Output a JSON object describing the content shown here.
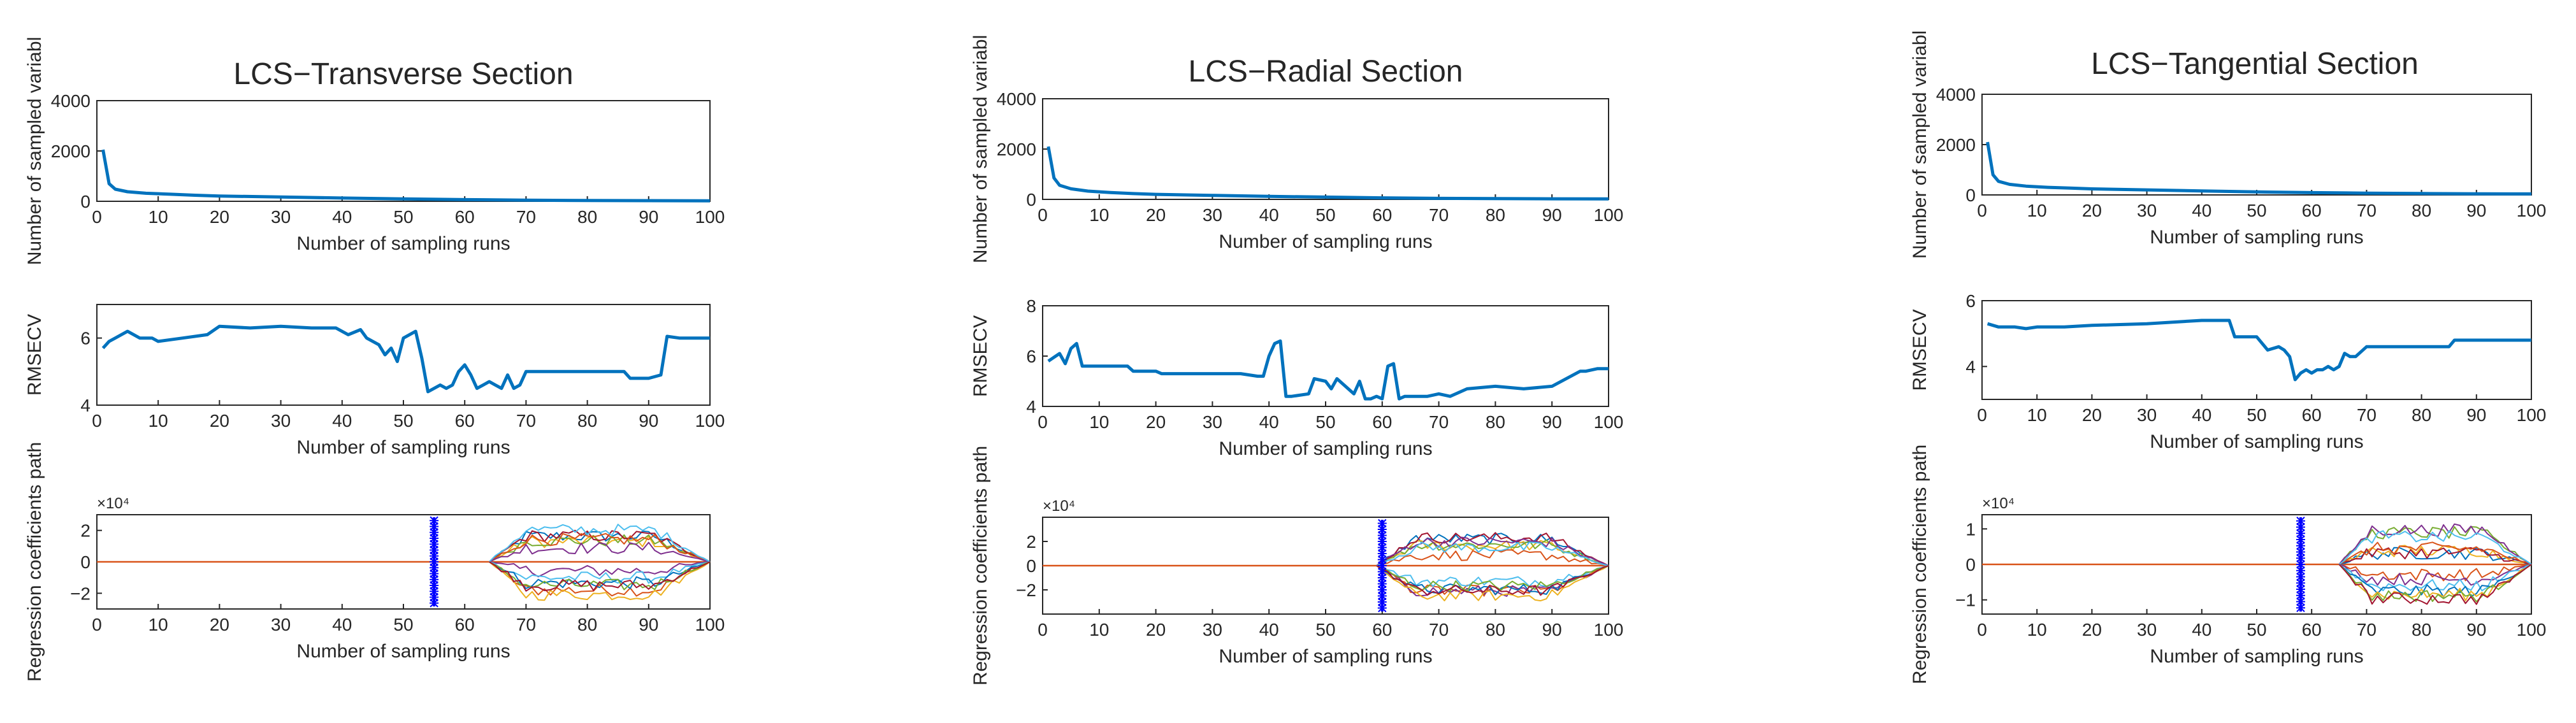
{
  "chart_data": [
    {
      "title": "LCS−Transverse Section",
      "subplots": [
        {
          "type": "line",
          "ylabel": "Number of sampled variabl",
          "xlabel": "Number of sampling runs",
          "xlim": [
            0,
            100
          ],
          "xticks": [
            0,
            10,
            20,
            30,
            40,
            50,
            60,
            70,
            80,
            90,
            100
          ],
          "ylim": [
            0,
            4000
          ],
          "yticks": [
            0,
            2000,
            4000
          ],
          "series": [
            {
              "name": "sampled variables",
              "color": "#0072BD",
              "x": [
                1,
                2,
                3,
                5,
                8,
                12,
                16,
                20,
                30,
                40,
                50,
                60,
                70,
                80,
                90,
                100
              ],
              "y": [
                2050,
                700,
                480,
                380,
                320,
                280,
                240,
                210,
                170,
                130,
                95,
                65,
                45,
                30,
                25,
                20
              ]
            }
          ]
        },
        {
          "type": "line",
          "ylabel": "RMSECV",
          "xlabel": "Number of sampling runs",
          "xlim": [
            0,
            100
          ],
          "xticks": [
            0,
            10,
            20,
            30,
            40,
            50,
            60,
            70,
            80,
            90,
            100
          ],
          "ylim": [
            4,
            7
          ],
          "yticks": [
            4,
            6
          ],
          "series": [
            {
              "name": "RMSECV",
              "color": "#0072BD",
              "x": [
                1,
                2,
                3,
                5,
                7,
                9,
                10,
                14,
                18,
                20,
                25,
                30,
                35,
                39,
                41,
                43,
                44,
                46,
                47,
                48,
                49,
                50,
                52,
                53,
                54,
                55,
                56,
                57,
                58,
                59,
                60,
                61,
                62,
                63,
                64,
                65,
                66,
                67,
                68,
                69,
                70,
                75,
                80,
                86,
                87,
                90,
                92,
                93,
                95,
                100
              ],
              "y": [
                5.7,
                5.9,
                6.0,
                6.2,
                6.0,
                6.0,
                5.9,
                6.0,
                6.1,
                6.35,
                6.3,
                6.35,
                6.3,
                6.3,
                6.1,
                6.25,
                6.0,
                5.8,
                5.5,
                5.7,
                5.3,
                6.0,
                6.2,
                5.4,
                4.4,
                4.5,
                4.6,
                4.5,
                4.6,
                5.0,
                5.2,
                4.9,
                4.5,
                4.6,
                4.7,
                4.6,
                4.5,
                4.9,
                4.5,
                4.6,
                5.0,
                5.0,
                5.0,
                5.0,
                4.8,
                4.8,
                4.9,
                6.05,
                6.0,
                6.0
              ]
            }
          ]
        },
        {
          "type": "line",
          "ylabel": "Regression coefficients path",
          "xlabel": "Number of sampling runs",
          "exponent": "×10⁴",
          "xlim": [
            0,
            100
          ],
          "xticks": [
            0,
            10,
            20,
            30,
            40,
            50,
            60,
            70,
            80,
            90,
            100
          ],
          "ylim": [
            -3,
            3
          ],
          "yticks": [
            -2,
            0,
            2
          ],
          "marker_x": 55,
          "paths_start": 64,
          "paths_end": 100,
          "path_amplitude": 2.2
        }
      ]
    },
    {
      "title": "LCS−Radial Section",
      "subplots": [
        {
          "type": "line",
          "ylabel": "Number of sampled variabl",
          "xlabel": "Number of sampling runs",
          "xlim": [
            0,
            100
          ],
          "xticks": [
            0,
            10,
            20,
            30,
            40,
            50,
            60,
            70,
            80,
            90,
            100
          ],
          "ylim": [
            0,
            4000
          ],
          "yticks": [
            0,
            2000,
            4000
          ],
          "series": [
            {
              "name": "sampled variables",
              "color": "#0072BD",
              "x": [
                1,
                2,
                3,
                5,
                8,
                12,
                16,
                20,
                30,
                40,
                50,
                60,
                70,
                80,
                90,
                100
              ],
              "y": [
                2100,
                850,
                560,
                420,
                330,
                270,
                230,
                200,
                160,
                120,
                90,
                60,
                40,
                30,
                22,
                18
              ]
            }
          ]
        },
        {
          "type": "line",
          "ylabel": "RMSECV",
          "xlabel": "Number of sampling runs",
          "xlim": [
            0,
            100
          ],
          "xticks": [
            0,
            10,
            20,
            30,
            40,
            50,
            60,
            70,
            80,
            90,
            100
          ],
          "ylim": [
            4,
            8
          ],
          "yticks": [
            4,
            6,
            8
          ],
          "series": [
            {
              "name": "RMSECV",
              "color": "#0072BD",
              "x": [
                1,
                3,
                4,
                5,
                6,
                7,
                8,
                12,
                15,
                16,
                20,
                21,
                30,
                35,
                38,
                39,
                40,
                41,
                42,
                43,
                44,
                47,
                48,
                50,
                51,
                52,
                55,
                56,
                57,
                58,
                59,
                60,
                61,
                62,
                63,
                64,
                68,
                70,
                72,
                75,
                80,
                85,
                90,
                95,
                96,
                98,
                100
              ],
              "y": [
                5.8,
                6.1,
                5.7,
                6.3,
                6.5,
                5.6,
                5.6,
                5.6,
                5.6,
                5.4,
                5.4,
                5.3,
                5.3,
                5.3,
                5.2,
                5.2,
                6.0,
                6.5,
                6.6,
                4.4,
                4.4,
                4.5,
                5.1,
                5.0,
                4.7,
                5.1,
                4.5,
                5.0,
                4.3,
                4.3,
                4.4,
                4.3,
                5.6,
                5.7,
                4.3,
                4.4,
                4.4,
                4.5,
                4.4,
                4.7,
                4.8,
                4.7,
                4.8,
                5.4,
                5.4,
                5.5,
                5.5
              ]
            }
          ]
        },
        {
          "type": "line",
          "ylabel": "Regression coefficients path",
          "xlabel": "Number of sampling runs",
          "exponent": "×10⁴",
          "xlim": [
            0,
            100
          ],
          "xticks": [
            0,
            10,
            20,
            30,
            40,
            50,
            60,
            70,
            80,
            90,
            100
          ],
          "ylim": [
            -4,
            4
          ],
          "yticks": [
            -2,
            0,
            2
          ],
          "marker_x": 60,
          "paths_start": 59,
          "paths_end": 100,
          "path_amplitude": 2.6
        }
      ]
    },
    {
      "title": "LCS−Tangential Section",
      "subplots": [
        {
          "type": "line",
          "ylabel": "Number of sampled variabl",
          "xlabel": "Number of sampling runs",
          "xlim": [
            0,
            100
          ],
          "xticks": [
            0,
            10,
            20,
            30,
            40,
            50,
            60,
            70,
            80,
            90,
            100
          ],
          "ylim": [
            0,
            4000
          ],
          "yticks": [
            0,
            2000,
            4000
          ],
          "series": [
            {
              "name": "sampled variables",
              "color": "#0072BD",
              "x": [
                1,
                2,
                3,
                5,
                8,
                12,
                16,
                20,
                30,
                40,
                50,
                60,
                70,
                80,
                90,
                100
              ],
              "y": [
                2100,
                800,
                540,
                420,
                350,
                300,
                270,
                240,
                200,
                160,
                120,
                90,
                70,
                55,
                45,
                40
              ]
            }
          ]
        },
        {
          "type": "line",
          "ylabel": "RMSECV",
          "xlabel": "Number of sampling runs",
          "xlim": [
            0,
            100
          ],
          "xticks": [
            0,
            10,
            20,
            30,
            40,
            50,
            60,
            70,
            80,
            90,
            100
          ],
          "ylim": [
            3,
            6
          ],
          "yticks": [
            4,
            6
          ],
          "series": [
            {
              "name": "RMSECV",
              "color": "#0072BD",
              "x": [
                1,
                3,
                6,
                8,
                10,
                15,
                20,
                30,
                40,
                45,
                46,
                50,
                52,
                54,
                55,
                56,
                57,
                58,
                59,
                60,
                61,
                62,
                63,
                64,
                65,
                66,
                67,
                68,
                70,
                75,
                80,
                85,
                86,
                90,
                100
              ],
              "y": [
                5.3,
                5.2,
                5.2,
                5.15,
                5.2,
                5.2,
                5.25,
                5.3,
                5.4,
                5.4,
                4.9,
                4.9,
                4.5,
                4.6,
                4.5,
                4.3,
                3.6,
                3.8,
                3.9,
                3.8,
                3.9,
                3.9,
                4.0,
                3.9,
                4.0,
                4.4,
                4.3,
                4.3,
                4.6,
                4.6,
                4.6,
                4.6,
                4.8,
                4.8,
                4.8
              ]
            }
          ]
        },
        {
          "type": "line",
          "ylabel": "Regression coefficients path",
          "xlabel": "Number of sampling runs",
          "exponent": "×10⁴",
          "xlim": [
            0,
            100
          ],
          "xticks": [
            0,
            10,
            20,
            30,
            40,
            50,
            60,
            70,
            80,
            90,
            100
          ],
          "ylim": [
            -1.4,
            1.4
          ],
          "yticks": [
            -1,
            0,
            1
          ],
          "marker_x": 58,
          "paths_start": 65,
          "paths_end": 100,
          "path_amplitude": 1.0
        }
      ]
    }
  ],
  "colors": {
    "main_line": "#0072BD",
    "zero_line": "#D95319",
    "marker": "#0000FF",
    "paths": [
      "#0072BD",
      "#D95319",
      "#EDB120",
      "#7E2F8E",
      "#77AC30",
      "#4DBEEE",
      "#A2142F"
    ]
  }
}
